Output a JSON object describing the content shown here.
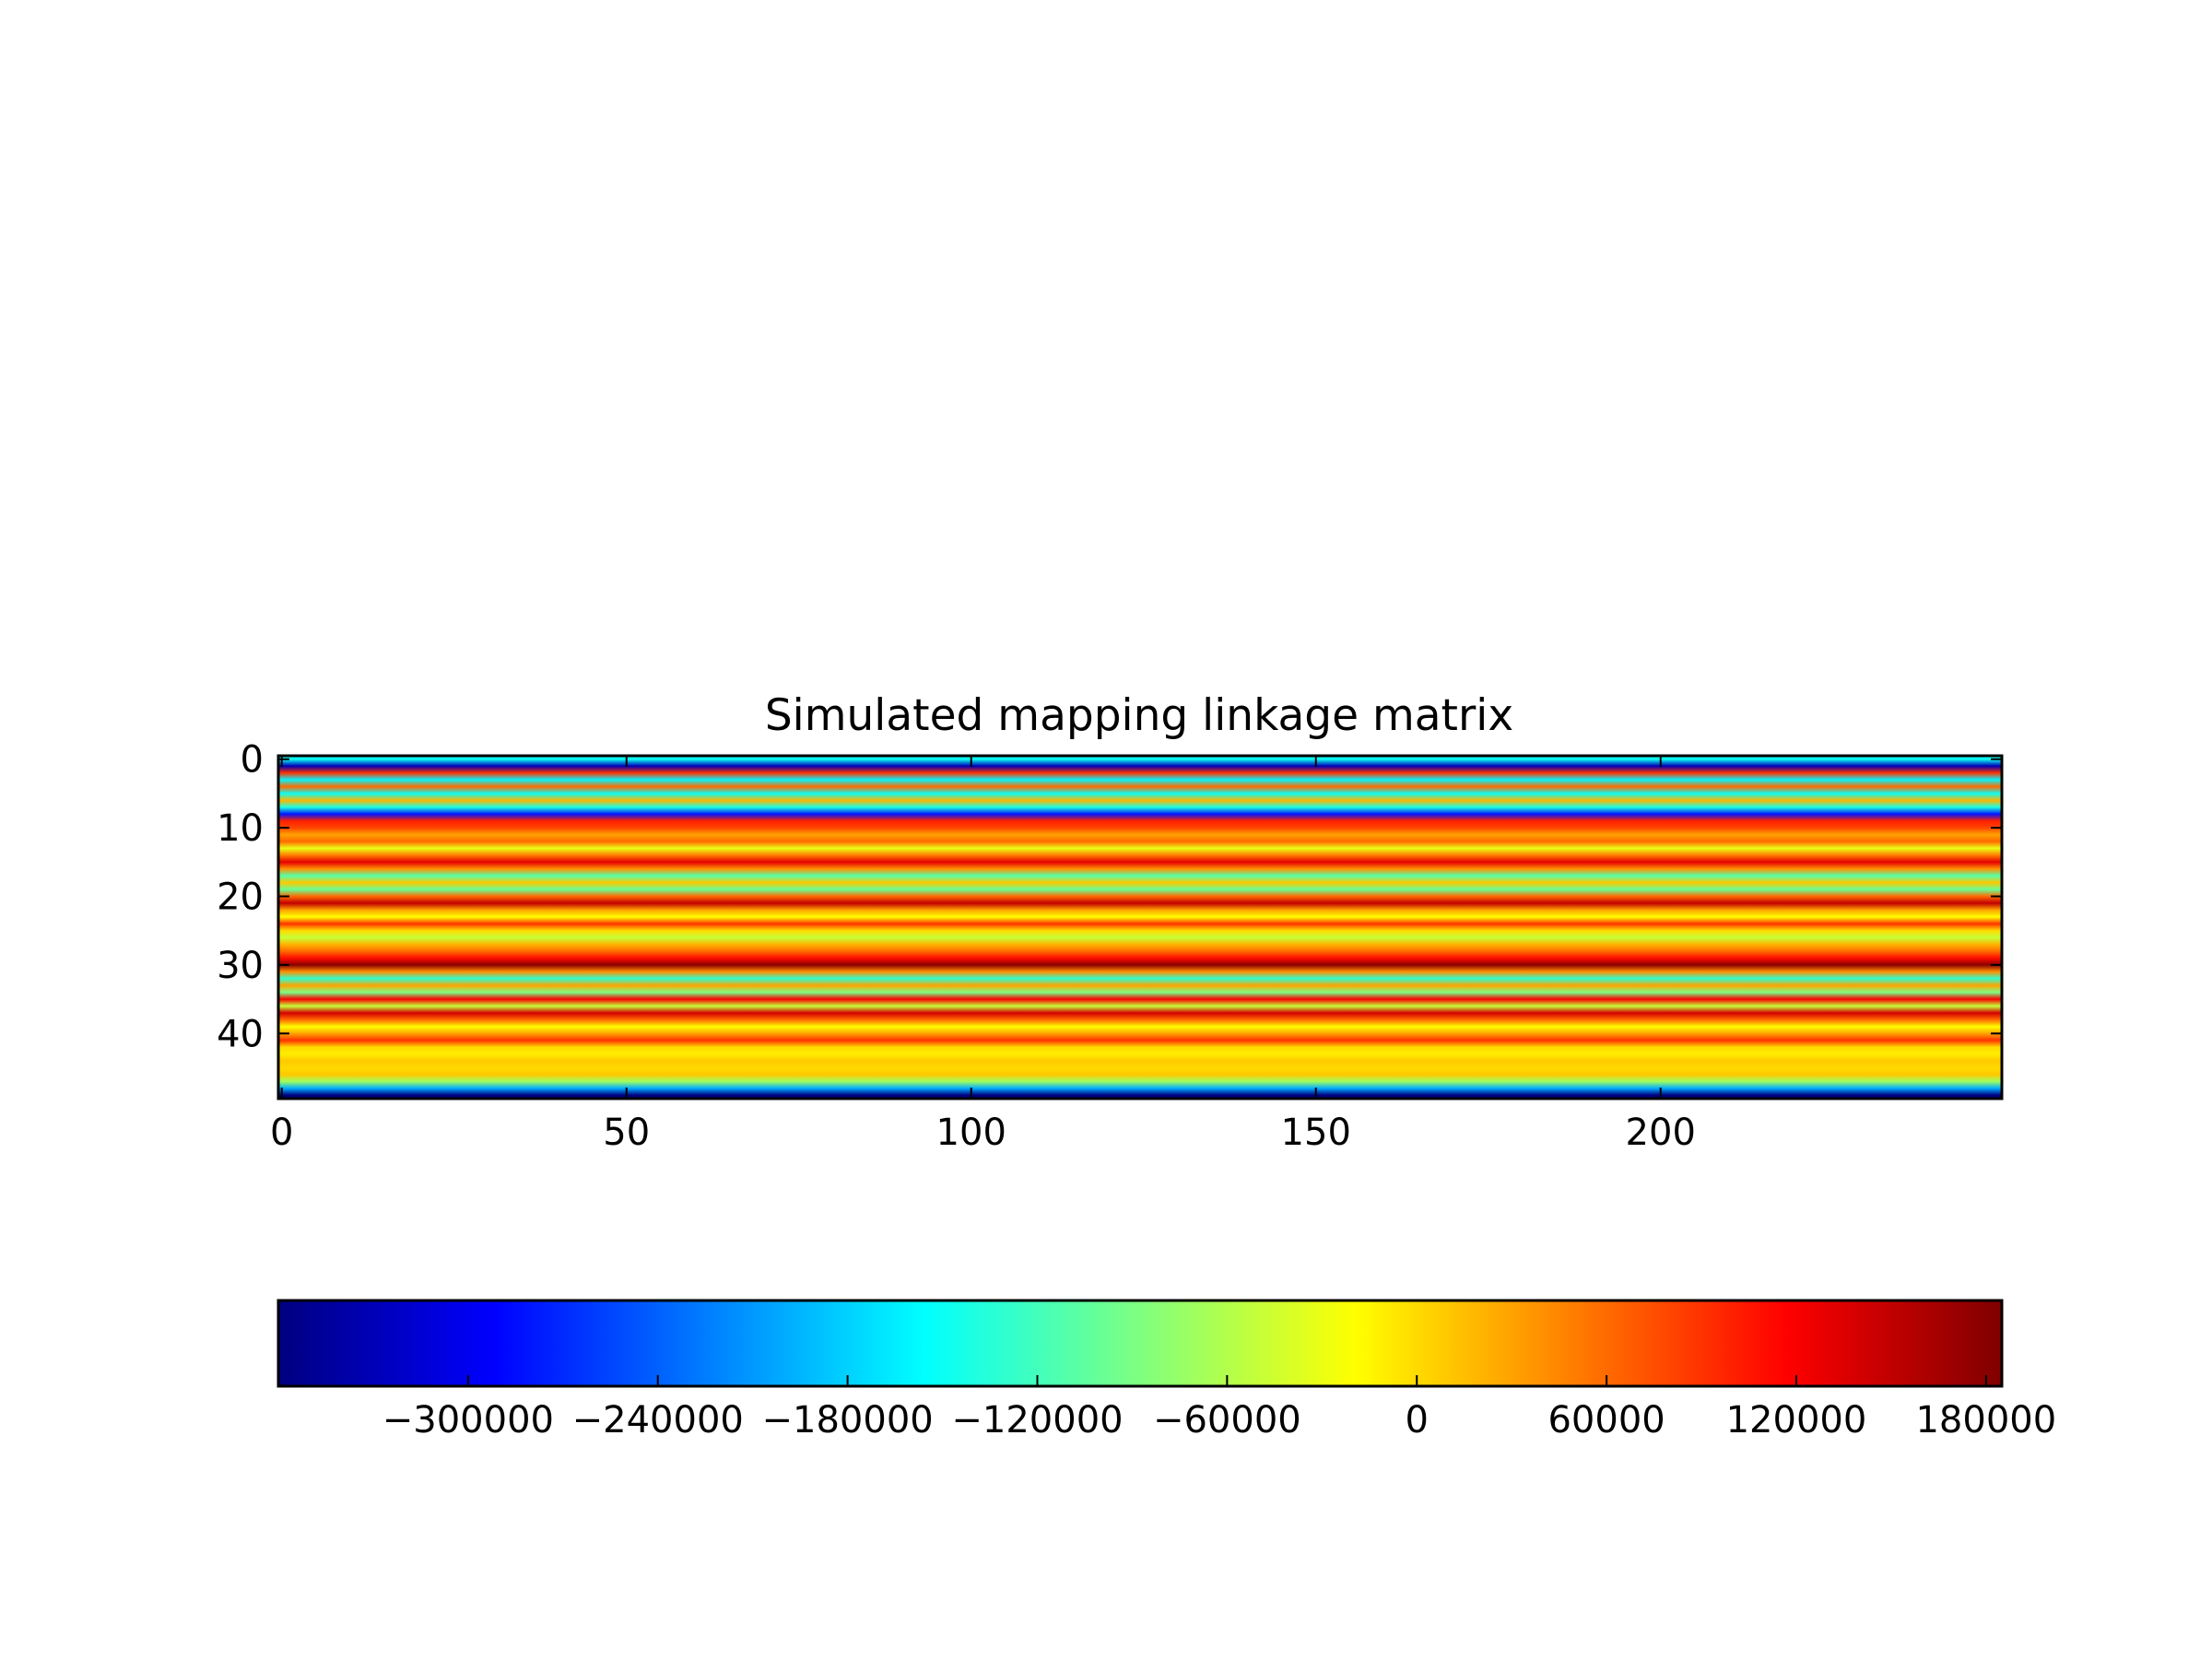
{
  "chart_data": {
    "type": "heatmap",
    "title": "Simulated mapping linkage matrix",
    "colormap": "jet",
    "colormap_stops": [
      "#00007f",
      "#0000ff",
      "#007fff",
      "#00ffff",
      "#7fff7f",
      "#ffff00",
      "#ff7f00",
      "#ff0000",
      "#7f0000"
    ],
    "n_columns": 250,
    "n_rows": 50,
    "xlim": [
      -0.5,
      249.5
    ],
    "ylim": [
      49.5,
      -0.5
    ],
    "x_ticks": [
      0,
      50,
      100,
      150,
      200
    ],
    "x_tick_labels": [
      "0",
      "50",
      "100",
      "150",
      "200"
    ],
    "y_ticks": [
      0,
      10,
      20,
      30,
      40
    ],
    "y_tick_labels": [
      "0",
      "10",
      "20",
      "30",
      "40"
    ],
    "row_values": [
      -150000,
      -330000,
      90000,
      -160000,
      60000,
      -150000,
      20000,
      -140000,
      -280000,
      100000,
      80000,
      30000,
      60000,
      -30000,
      50000,
      130000,
      40000,
      -110000,
      10000,
      -100000,
      60000,
      150000,
      30000,
      -20000,
      90000,
      0,
      -50000,
      20000,
      60000,
      110000,
      180000,
      40000,
      -130000,
      30000,
      -90000,
      120000,
      -50000,
      140000,
      60000,
      -20000,
      30000,
      90000,
      0,
      -10000,
      10000,
      0,
      10000,
      -70000,
      -200000,
      -360000
    ],
    "colorbar": {
      "orientation": "horizontal",
      "vmin": -360000,
      "vmax": 185000,
      "ticks": [
        -300000,
        -240000,
        -180000,
        -120000,
        -60000,
        0,
        60000,
        120000,
        180000
      ],
      "tick_labels": [
        "−300000",
        "−240000",
        "−180000",
        "−120000",
        "−60000",
        "0",
        "60000",
        "120000",
        "180000"
      ]
    },
    "grid": false,
    "legend": "none"
  }
}
